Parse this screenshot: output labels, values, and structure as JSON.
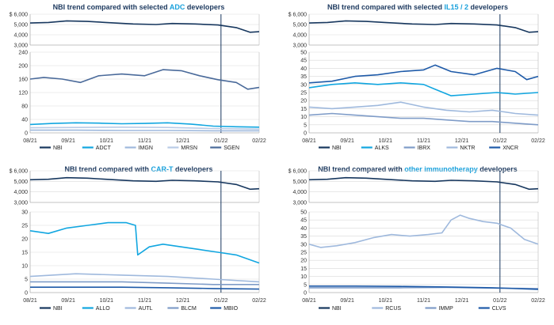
{
  "colors": {
    "navy": "#17375e",
    "mid": "#1e5aa8",
    "cyan": "#11a6e0",
    "light": "#9fb9dd",
    "grey": "#7f9cc8",
    "title": "#1f3b60",
    "accent": "#1aa1dc"
  },
  "chart_data": [
    {
      "type": "line",
      "title": "NBI trend compared with selected ADC developers",
      "title_parts": [
        "NBI trend compared with selected ",
        "ADC",
        " developers"
      ],
      "x_ticks": [
        "08/21",
        "09/21",
        "10/21",
        "11/21",
        "12/21",
        "01/22",
        "02/22"
      ],
      "vline_at": "01/22",
      "top_axis": {
        "ylim": [
          3000,
          6000
        ],
        "ticks": [
          "$ 6,000",
          "5,000",
          "4,000",
          "3,000"
        ]
      },
      "bottom_axis": {
        "ylim": [
          0,
          240
        ],
        "ticks": [
          "240",
          "200",
          "160",
          "120",
          "80",
          "40",
          "0"
        ]
      },
      "series": [
        {
          "name": "NBI",
          "color": "#17375e",
          "panel": "top",
          "points": [
            [
              0,
              5150
            ],
            [
              0.08,
              5200
            ],
            [
              0.16,
              5350
            ],
            [
              0.25,
              5300
            ],
            [
              0.33,
              5200
            ],
            [
              0.45,
              5050
            ],
            [
              0.55,
              5000
            ],
            [
              0.62,
              5100
            ],
            [
              0.72,
              5050
            ],
            [
              0.82,
              4950
            ],
            [
              0.9,
              4700
            ],
            [
              0.96,
              4250
            ],
            [
              1,
              4300
            ]
          ]
        },
        {
          "name": "ADCT",
          "color": "#11a6e0",
          "panel": "bottom",
          "points": [
            [
              0,
              25
            ],
            [
              0.1,
              28
            ],
            [
              0.2,
              30
            ],
            [
              0.3,
              29
            ],
            [
              0.4,
              27
            ],
            [
              0.5,
              28
            ],
            [
              0.6,
              30
            ],
            [
              0.7,
              26
            ],
            [
              0.8,
              20
            ],
            [
              0.9,
              18
            ],
            [
              1,
              17
            ]
          ]
        },
        {
          "name": "IMGN",
          "color": "#9fb9dd",
          "panel": "bottom",
          "points": [
            [
              0,
              8
            ],
            [
              0.2,
              8
            ],
            [
              0.4,
              7
            ],
            [
              0.6,
              7
            ],
            [
              0.8,
              6
            ],
            [
              1,
              6
            ]
          ]
        },
        {
          "name": "MRSN",
          "color": "#b9cbe6",
          "panel": "bottom",
          "points": [
            [
              0,
              15
            ],
            [
              0.2,
              16
            ],
            [
              0.4,
              17
            ],
            [
              0.6,
              16
            ],
            [
              0.8,
              13
            ],
            [
              1,
              11
            ]
          ]
        },
        {
          "name": "SGEN",
          "color": "#4a6a9a",
          "panel": "bottom",
          "points": [
            [
              0,
              160
            ],
            [
              0.06,
              165
            ],
            [
              0.14,
              160
            ],
            [
              0.22,
              150
            ],
            [
              0.3,
              170
            ],
            [
              0.4,
              175
            ],
            [
              0.5,
              170
            ],
            [
              0.58,
              188
            ],
            [
              0.66,
              185
            ],
            [
              0.74,
              170
            ],
            [
              0.82,
              158
            ],
            [
              0.9,
              150
            ],
            [
              0.95,
              130
            ],
            [
              1,
              135
            ]
          ]
        }
      ]
    },
    {
      "type": "line",
      "title": "NBI trend compared with selected IL15 / 2 developers",
      "title_parts": [
        "NBI trend compared with selected ",
        "IL15 / 2",
        " developers"
      ],
      "x_ticks": [
        "08/21",
        "09/21",
        "10/21",
        "11/21",
        "12/21",
        "01/22",
        "02/22"
      ],
      "vline_at": "01/22",
      "top_axis": {
        "ylim": [
          3000,
          6000
        ],
        "ticks": [
          "$ 6,000",
          "5,000",
          "4,000",
          "3,000"
        ]
      },
      "bottom_axis": {
        "ylim": [
          0,
          50
        ],
        "ticks": [
          "50",
          "45",
          "40",
          "35",
          "30",
          "25",
          "20",
          "15",
          "10",
          "5",
          "0"
        ]
      },
      "series": [
        {
          "name": "NBI",
          "color": "#17375e",
          "panel": "top",
          "points": [
            [
              0,
              5150
            ],
            [
              0.08,
              5200
            ],
            [
              0.16,
              5350
            ],
            [
              0.25,
              5300
            ],
            [
              0.33,
              5200
            ],
            [
              0.45,
              5050
            ],
            [
              0.55,
              5000
            ],
            [
              0.62,
              5100
            ],
            [
              0.72,
              5050
            ],
            [
              0.82,
              4950
            ],
            [
              0.9,
              4700
            ],
            [
              0.96,
              4250
            ],
            [
              1,
              4300
            ]
          ]
        },
        {
          "name": "ALKS",
          "color": "#11a6e0",
          "panel": "bottom",
          "points": [
            [
              0,
              28
            ],
            [
              0.1,
              30
            ],
            [
              0.2,
              31
            ],
            [
              0.3,
              30
            ],
            [
              0.4,
              31
            ],
            [
              0.5,
              30
            ],
            [
              0.55,
              27
            ],
            [
              0.62,
              23
            ],
            [
              0.72,
              24
            ],
            [
              0.82,
              25
            ],
            [
              0.9,
              24
            ],
            [
              1,
              25
            ]
          ]
        },
        {
          "name": "IBRX",
          "color": "#7f9cc8",
          "panel": "bottom",
          "points": [
            [
              0,
              11
            ],
            [
              0.1,
              12
            ],
            [
              0.2,
              11
            ],
            [
              0.3,
              10
            ],
            [
              0.4,
              9
            ],
            [
              0.5,
              9
            ],
            [
              0.6,
              8
            ],
            [
              0.7,
              7
            ],
            [
              0.8,
              7
            ],
            [
              0.9,
              6
            ],
            [
              1,
              5
            ]
          ]
        },
        {
          "name": "NKTR",
          "color": "#9fb9dd",
          "panel": "bottom",
          "points": [
            [
              0,
              16
            ],
            [
              0.1,
              15
            ],
            [
              0.2,
              16
            ],
            [
              0.3,
              17
            ],
            [
              0.4,
              19
            ],
            [
              0.5,
              16
            ],
            [
              0.6,
              14
            ],
            [
              0.7,
              13
            ],
            [
              0.8,
              14
            ],
            [
              0.9,
              12
            ],
            [
              1,
              11
            ]
          ]
        },
        {
          "name": "XNCR",
          "color": "#1e5aa8",
          "panel": "bottom",
          "points": [
            [
              0,
              31
            ],
            [
              0.1,
              32
            ],
            [
              0.2,
              35
            ],
            [
              0.3,
              36
            ],
            [
              0.4,
              38
            ],
            [
              0.5,
              39
            ],
            [
              0.55,
              42
            ],
            [
              0.62,
              38
            ],
            [
              0.72,
              36
            ],
            [
              0.82,
              40
            ],
            [
              0.9,
              38
            ],
            [
              0.95,
              33
            ],
            [
              1,
              35
            ]
          ]
        }
      ]
    },
    {
      "type": "line",
      "title": "NBI trend compared with CAR-T developers",
      "title_parts": [
        "NBI trend compared with ",
        "CAR-T",
        " developers"
      ],
      "x_ticks": [
        "08/21",
        "09/21",
        "10/21",
        "11/21",
        "12/21",
        "01/22",
        "02/22"
      ],
      "vline_at": "01/22",
      "top_axis": {
        "ylim": [
          3000,
          6000
        ],
        "ticks": [
          "$ 6,000",
          "5,000",
          "4,000",
          "3,000"
        ]
      },
      "bottom_axis": {
        "ylim": [
          0,
          30
        ],
        "ticks": [
          "30",
          "25",
          "20",
          "15",
          "10",
          "5",
          "0"
        ]
      },
      "series": [
        {
          "name": "NBI",
          "color": "#17375e",
          "panel": "top",
          "points": [
            [
              0,
              5150
            ],
            [
              0.08,
              5200
            ],
            [
              0.16,
              5350
            ],
            [
              0.25,
              5300
            ],
            [
              0.33,
              5200
            ],
            [
              0.45,
              5050
            ],
            [
              0.55,
              5000
            ],
            [
              0.62,
              5100
            ],
            [
              0.72,
              5050
            ],
            [
              0.82,
              4950
            ],
            [
              0.9,
              4700
            ],
            [
              0.96,
              4250
            ],
            [
              1,
              4300
            ]
          ]
        },
        {
          "name": "ALLO",
          "color": "#11a6e0",
          "panel": "bottom",
          "points": [
            [
              0,
              23
            ],
            [
              0.08,
              22
            ],
            [
              0.16,
              24
            ],
            [
              0.25,
              25
            ],
            [
              0.34,
              26
            ],
            [
              0.42,
              26
            ],
            [
              0.46,
              25
            ],
            [
              0.47,
              14
            ],
            [
              0.52,
              17
            ],
            [
              0.58,
              18
            ],
            [
              0.66,
              17
            ],
            [
              0.74,
              16
            ],
            [
              0.82,
              15
            ],
            [
              0.9,
              14
            ],
            [
              1,
              11
            ]
          ]
        },
        {
          "name": "AUTL",
          "color": "#9fb9dd",
          "panel": "bottom",
          "points": [
            [
              0,
              6
            ],
            [
              0.2,
              7
            ],
            [
              0.4,
              6.5
            ],
            [
              0.6,
              6
            ],
            [
              0.8,
              5
            ],
            [
              1,
              4
            ]
          ]
        },
        {
          "name": "BLCM",
          "color": "#7f9cc8",
          "panel": "bottom",
          "points": [
            [
              0,
              4
            ],
            [
              0.2,
              4
            ],
            [
              0.4,
              4
            ],
            [
              0.6,
              3.5
            ],
            [
              0.8,
              3
            ],
            [
              1,
              3
            ]
          ]
        },
        {
          "name": "MBIO",
          "color": "#1e5aa8",
          "panel": "bottom",
          "points": [
            [
              0,
              2
            ],
            [
              0.2,
              2
            ],
            [
              0.4,
              2
            ],
            [
              0.6,
              1.8
            ],
            [
              0.8,
              1.5
            ],
            [
              1,
              1.3
            ]
          ]
        }
      ]
    },
    {
      "type": "line",
      "title": "NBI trend compared with other immunotherapy developers",
      "title_parts": [
        "NBI trend compared with ",
        "other immunotherapy",
        " developers"
      ],
      "x_ticks": [
        "08/21",
        "09/21",
        "10/21",
        "11/21",
        "12/21",
        "01/22",
        "02/22"
      ],
      "vline_at": "01/22",
      "top_axis": {
        "ylim": [
          3000,
          6000
        ],
        "ticks": [
          "$ 6,000",
          "5,000",
          "4,000",
          "3,000"
        ]
      },
      "bottom_axis": {
        "ylim": [
          0,
          50
        ],
        "ticks": [
          "50",
          "45",
          "40",
          "35",
          "30",
          "25",
          "20",
          "15",
          "10",
          "5",
          "0"
        ]
      },
      "series": [
        {
          "name": "NBI",
          "color": "#17375e",
          "panel": "top",
          "points": [
            [
              0,
              5150
            ],
            [
              0.08,
              5200
            ],
            [
              0.16,
              5350
            ],
            [
              0.25,
              5300
            ],
            [
              0.33,
              5200
            ],
            [
              0.45,
              5050
            ],
            [
              0.55,
              5000
            ],
            [
              0.62,
              5100
            ],
            [
              0.72,
              5050
            ],
            [
              0.82,
              4950
            ],
            [
              0.9,
              4700
            ],
            [
              0.96,
              4250
            ],
            [
              1,
              4300
            ]
          ]
        },
        {
          "name": "RCUS",
          "color": "#9fb9dd",
          "panel": "bottom",
          "points": [
            [
              0,
              30
            ],
            [
              0.05,
              28
            ],
            [
              0.12,
              29
            ],
            [
              0.2,
              31
            ],
            [
              0.28,
              34
            ],
            [
              0.36,
              36
            ],
            [
              0.44,
              35
            ],
            [
              0.52,
              36
            ],
            [
              0.58,
              37
            ],
            [
              0.62,
              45
            ],
            [
              0.66,
              48
            ],
            [
              0.7,
              46
            ],
            [
              0.76,
              44
            ],
            [
              0.82,
              43
            ],
            [
              0.88,
              40
            ],
            [
              0.94,
              33
            ],
            [
              1,
              30
            ]
          ]
        },
        {
          "name": "IMMP",
          "color": "#7f9cc8",
          "panel": "bottom",
          "points": [
            [
              0,
              3
            ],
            [
              0.2,
              3
            ],
            [
              0.4,
              3
            ],
            [
              0.6,
              3.2
            ],
            [
              0.8,
              2.8
            ],
            [
              1,
              2.5
            ]
          ]
        },
        {
          "name": "CLVS",
          "color": "#1e5aa8",
          "panel": "bottom",
          "points": [
            [
              0,
              4
            ],
            [
              0.2,
              4
            ],
            [
              0.4,
              3.8
            ],
            [
              0.6,
              3.5
            ],
            [
              0.8,
              3
            ],
            [
              1,
              2
            ]
          ]
        }
      ]
    }
  ]
}
